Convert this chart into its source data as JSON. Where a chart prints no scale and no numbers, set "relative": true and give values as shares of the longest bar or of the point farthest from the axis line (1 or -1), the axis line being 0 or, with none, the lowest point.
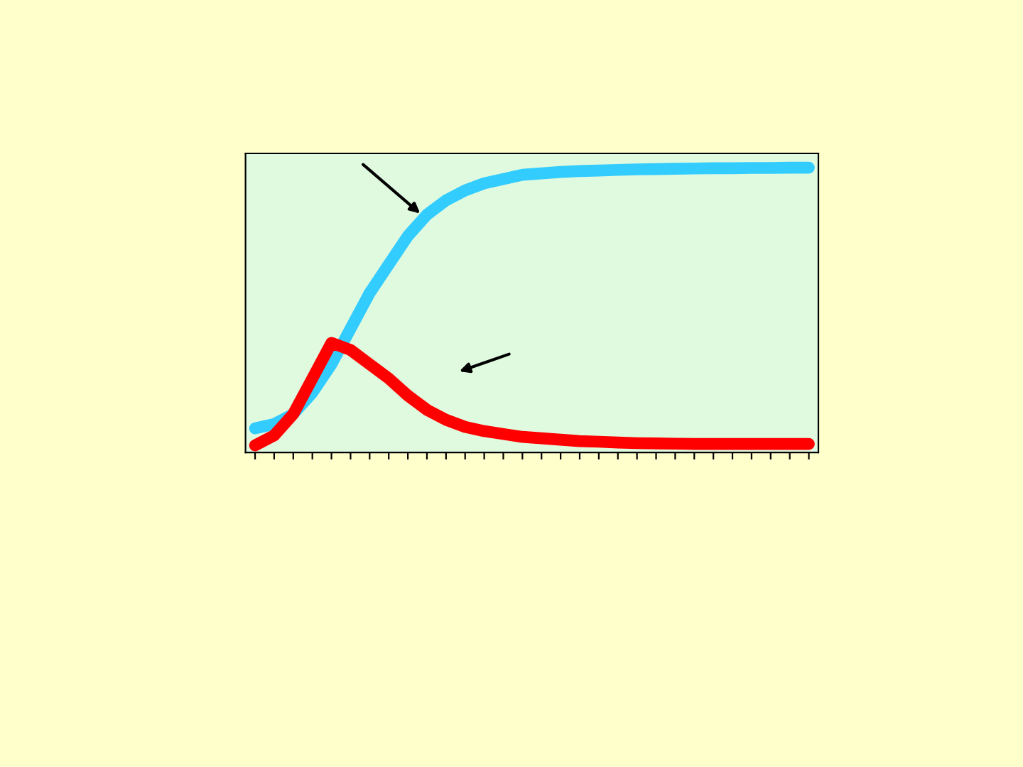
{
  "chart_data": {
    "type": "line",
    "relative": true,
    "categories": [
      null,
      null,
      null,
      null,
      null,
      null,
      null,
      null,
      null,
      null,
      null,
      null,
      null,
      null,
      null,
      null,
      null,
      null,
      null,
      null,
      null,
      null,
      null,
      null,
      null,
      null,
      null,
      null,
      null,
      null
    ],
    "series": [
      {
        "color": "#33ccff",
        "values": [
          0.085,
          0.1,
          0.135,
          0.21,
          0.31,
          0.435,
          0.56,
          0.66,
          0.76,
          0.835,
          0.885,
          0.92,
          0.945,
          0.96,
          0.975,
          0.98,
          0.985,
          0.988,
          0.99,
          0.992,
          0.994,
          0.995,
          0.996,
          0.997,
          0.998,
          0.998,
          0.999,
          0.999,
          1.0,
          1.0
        ]
      },
      {
        "color": "#ff0000",
        "values": [
          0.025,
          0.06,
          0.135,
          0.26,
          0.385,
          0.36,
          0.31,
          0.26,
          0.2,
          0.15,
          0.115,
          0.09,
          0.075,
          0.065,
          0.055,
          0.05,
          0.045,
          0.04,
          0.038,
          0.035,
          0.033,
          0.032,
          0.031,
          0.03,
          0.03,
          0.03,
          0.03,
          0.03,
          0.03,
          0.03
        ]
      }
    ],
    "legend": false
  }
}
